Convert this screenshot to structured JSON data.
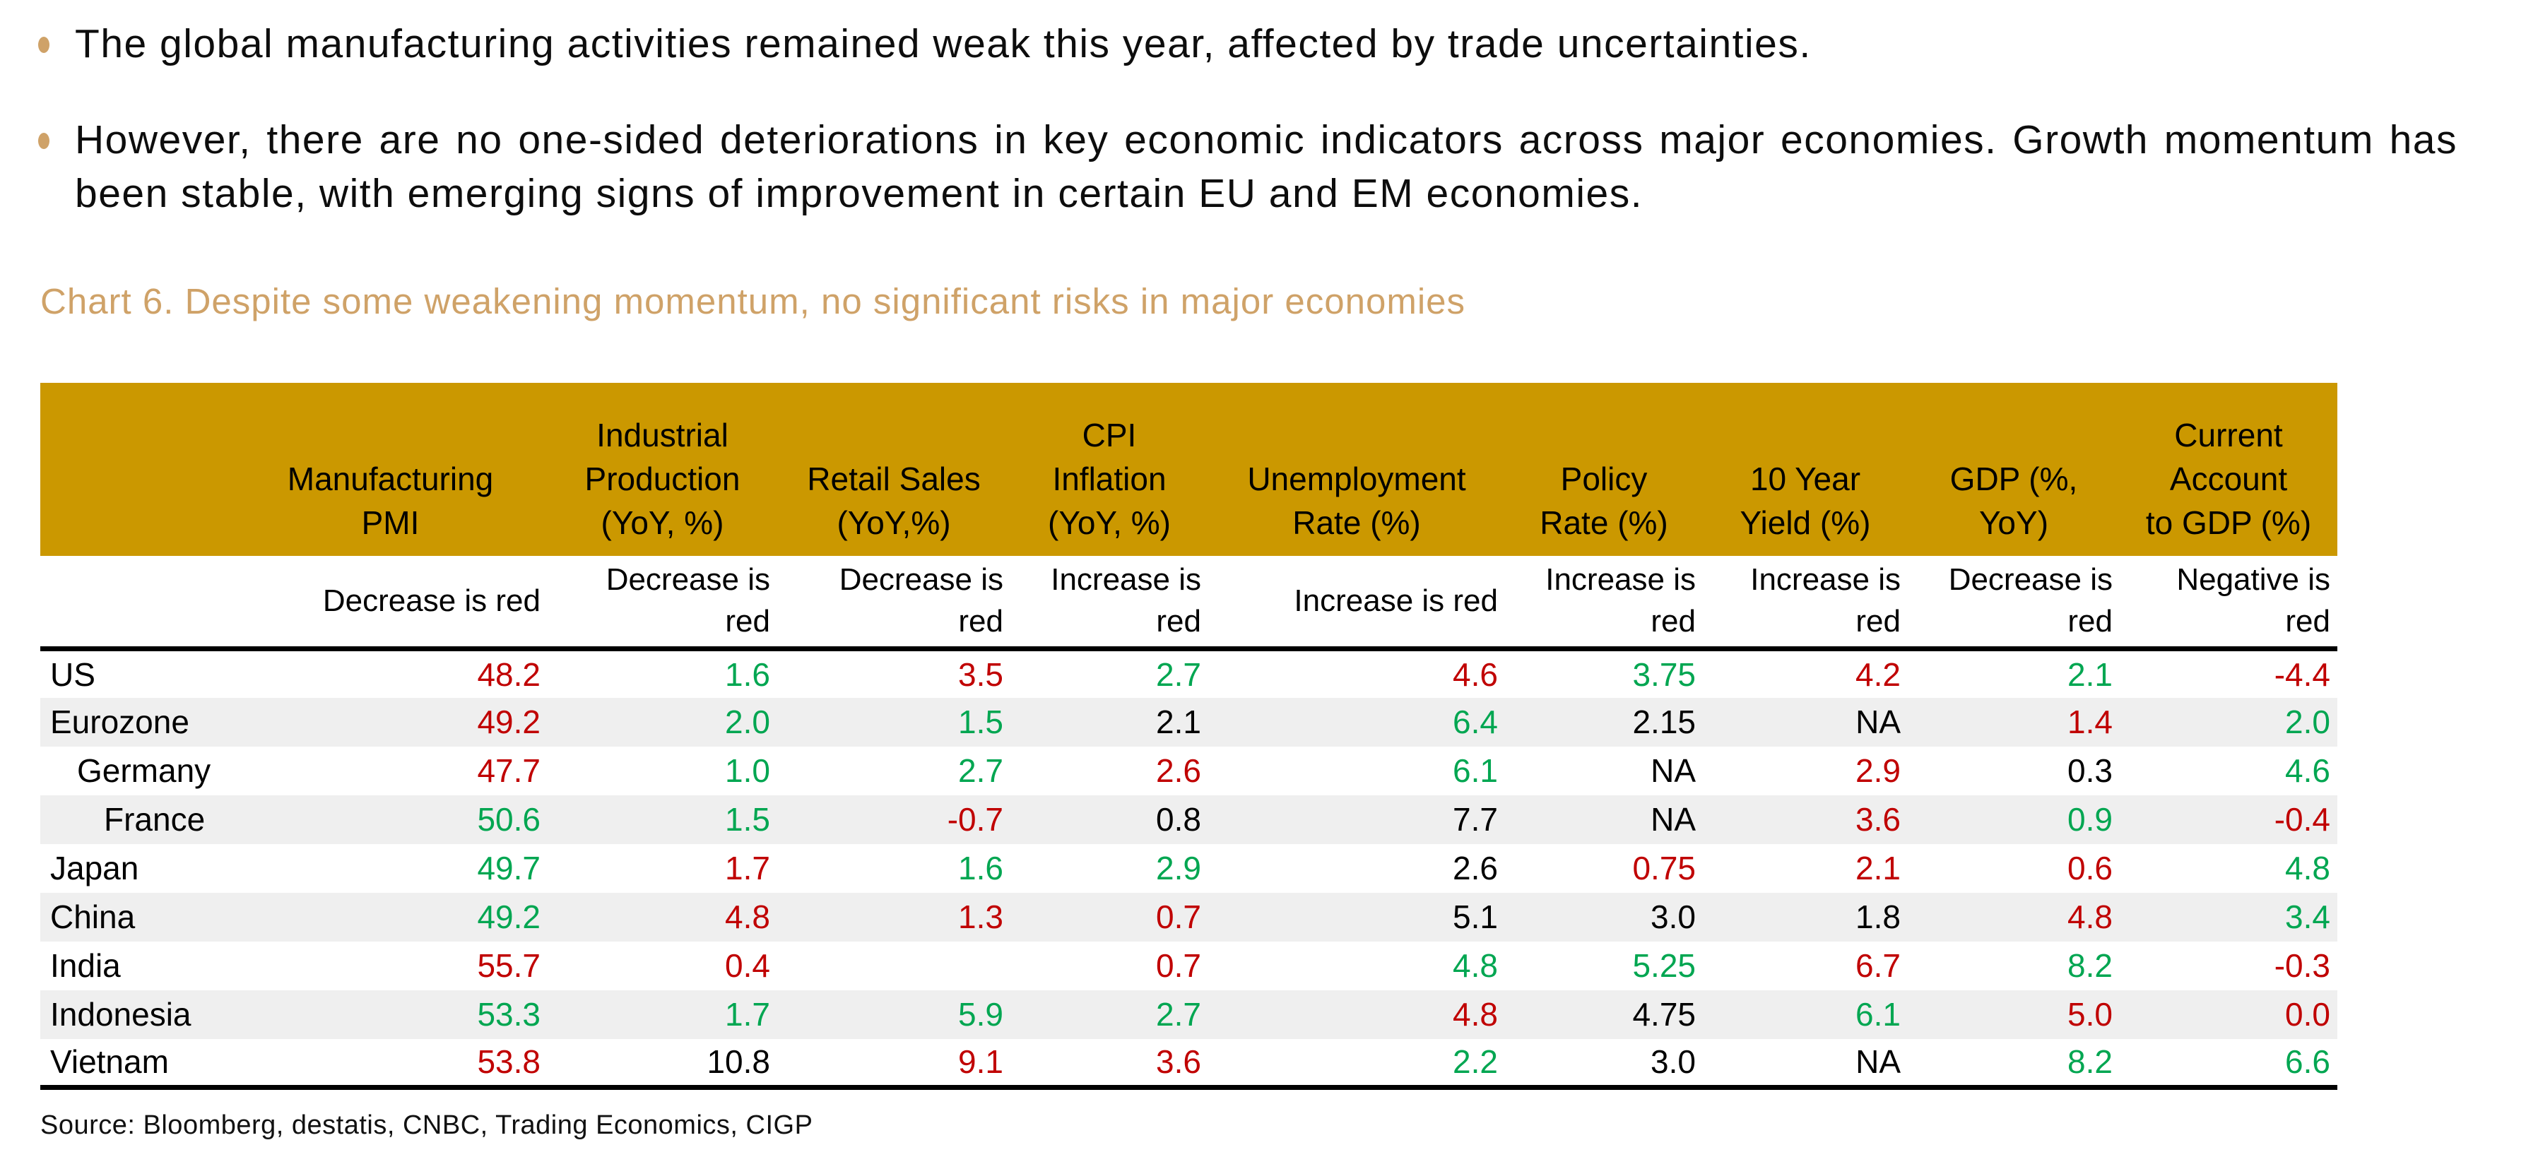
{
  "page": {
    "bullets": [
      "The global manufacturing activities remained weak this year, affected by trade uncertainties.",
      "However, there are no one-sided deteriorations in key economic indicators across major economies. Growth momentum has been stable, with emerging signs of improvement in certain EU and EM economies."
    ],
    "chart_title": "Chart 6. Despite some weakening momentum, no significant risks in major economies",
    "source": "Source: Bloomberg, destatis, CNBC, Trading Economics, CIGP"
  },
  "colors": {
    "header_bg": "#CB9800",
    "accent_tan": "#CFA268",
    "red": "#C00000",
    "green": "#00A651",
    "stripe": "#EFEFEF"
  },
  "table": {
    "columns": [
      {
        "label": "",
        "sub": ""
      },
      {
        "label": "Manufacturing\nPMI",
        "sub": "Decrease is red"
      },
      {
        "label": "Industrial\nProduction\n(YoY, %)",
        "sub": "Decrease is\nred"
      },
      {
        "label": "Retail Sales\n(YoY,%)",
        "sub": "Decrease is\nred"
      },
      {
        "label": "CPI\nInflation\n(YoY, %)",
        "sub": "Increase is\nred"
      },
      {
        "label": "Unemployment\nRate (%)",
        "sub": "Increase is red"
      },
      {
        "label": "Policy\nRate (%)",
        "sub": "Increase is\nred"
      },
      {
        "label": "10 Year\nYield (%)",
        "sub": "Increase is\nred"
      },
      {
        "label": "GDP (%,\nYoY)",
        "sub": "Decrease is\nred"
      },
      {
        "label": "Current\nAccount\nto GDP (%)",
        "sub": "Negative is\nred"
      }
    ],
    "rows": [
      {
        "name": "US",
        "indent": 0,
        "cells": [
          [
            "48.2",
            "red"
          ],
          [
            "1.6",
            "green"
          ],
          [
            "3.5",
            "red"
          ],
          [
            "2.7",
            "green"
          ],
          [
            "4.6",
            "red"
          ],
          [
            "3.75",
            "green"
          ],
          [
            "4.2",
            "red"
          ],
          [
            "2.1",
            "green"
          ],
          [
            "-4.4",
            "red"
          ]
        ]
      },
      {
        "name": "Eurozone",
        "indent": 0,
        "cells": [
          [
            "49.2",
            "red"
          ],
          [
            "2.0",
            "green"
          ],
          [
            "1.5",
            "green"
          ],
          [
            "2.1",
            "black"
          ],
          [
            "6.4",
            "green"
          ],
          [
            "2.15",
            "black"
          ],
          [
            "NA",
            "black"
          ],
          [
            "1.4",
            "red"
          ],
          [
            "2.0",
            "green"
          ]
        ]
      },
      {
        "name": "Germany",
        "indent": 1,
        "cells": [
          [
            "47.7",
            "red"
          ],
          [
            "1.0",
            "green"
          ],
          [
            "2.7",
            "green"
          ],
          [
            "2.6",
            "red"
          ],
          [
            "6.1",
            "green"
          ],
          [
            "NA",
            "black"
          ],
          [
            "2.9",
            "red"
          ],
          [
            "0.3",
            "black"
          ],
          [
            "4.6",
            "green"
          ]
        ]
      },
      {
        "name": "France",
        "indent": 2,
        "cells": [
          [
            "50.6",
            "green"
          ],
          [
            "1.5",
            "green"
          ],
          [
            "-0.7",
            "red"
          ],
          [
            "0.8",
            "black"
          ],
          [
            "7.7",
            "black"
          ],
          [
            "NA",
            "black"
          ],
          [
            "3.6",
            "red"
          ],
          [
            "0.9",
            "green"
          ],
          [
            "-0.4",
            "red"
          ]
        ]
      },
      {
        "name": "Japan",
        "indent": 0,
        "cells": [
          [
            "49.7",
            "green"
          ],
          [
            "1.7",
            "red"
          ],
          [
            "1.6",
            "green"
          ],
          [
            "2.9",
            "green"
          ],
          [
            "2.6",
            "black"
          ],
          [
            "0.75",
            "red"
          ],
          [
            "2.1",
            "red"
          ],
          [
            "0.6",
            "red"
          ],
          [
            "4.8",
            "green"
          ]
        ]
      },
      {
        "name": "China",
        "indent": 0,
        "cells": [
          [
            "49.2",
            "green"
          ],
          [
            "4.8",
            "red"
          ],
          [
            "1.3",
            "red"
          ],
          [
            "0.7",
            "red"
          ],
          [
            "5.1",
            "black"
          ],
          [
            "3.0",
            "black"
          ],
          [
            "1.8",
            "black"
          ],
          [
            "4.8",
            "red"
          ],
          [
            "3.4",
            "green"
          ]
        ]
      },
      {
        "name": "India",
        "indent": 0,
        "cells": [
          [
            "55.7",
            "red"
          ],
          [
            "0.4",
            "red"
          ],
          [
            "",
            "black"
          ],
          [
            "0.7",
            "red"
          ],
          [
            "4.8",
            "green"
          ],
          [
            "5.25",
            "green"
          ],
          [
            "6.7",
            "red"
          ],
          [
            "8.2",
            "green"
          ],
          [
            "-0.3",
            "red"
          ]
        ]
      },
      {
        "name": "Indonesia",
        "indent": 0,
        "cells": [
          [
            "53.3",
            "green"
          ],
          [
            "1.7",
            "green"
          ],
          [
            "5.9",
            "green"
          ],
          [
            "2.7",
            "green"
          ],
          [
            "4.8",
            "red"
          ],
          [
            "4.75",
            "black"
          ],
          [
            "6.1",
            "green"
          ],
          [
            "5.0",
            "red"
          ],
          [
            "0.0",
            "red"
          ]
        ]
      },
      {
        "name": "Vietnam",
        "indent": 0,
        "cells": [
          [
            "53.8",
            "red"
          ],
          [
            "10.8",
            "black"
          ],
          [
            "9.1",
            "red"
          ],
          [
            "3.6",
            "red"
          ],
          [
            "2.2",
            "green"
          ],
          [
            "3.0",
            "black"
          ],
          [
            "NA",
            "black"
          ],
          [
            "8.2",
            "green"
          ],
          [
            "6.6",
            "green"
          ]
        ]
      }
    ]
  }
}
